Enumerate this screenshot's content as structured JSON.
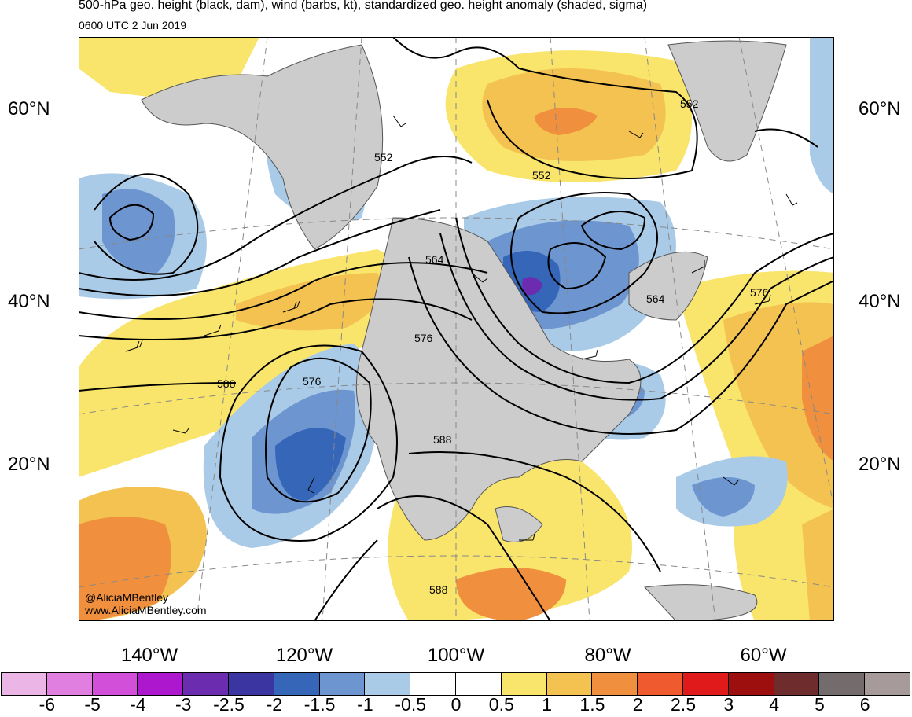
{
  "header": {
    "title": "500-hPa geo. height (black, dam), wind (barbs, kt), standardized geo. height anomaly (shaded, sigma)",
    "valid_time": "0600 UTC 2 Jun 2019"
  },
  "axes": {
    "lat_labels_left": [
      "60°N",
      "40°N",
      "20°N"
    ],
    "lat_labels_right": [
      "60°N",
      "40°N",
      "20°N"
    ],
    "lon_labels": [
      "140°W",
      "120°W",
      "100°W",
      "80°W",
      "60°W"
    ]
  },
  "contour_labels": [
    "552",
    "552",
    "552",
    "564",
    "564",
    "576",
    "576",
    "576",
    "588",
    "588",
    "588"
  ],
  "credit": {
    "handle": "@AliciaMBentley",
    "website": "www.AliciaMBentley.com"
  },
  "colorbar": {
    "ticks": [
      "-6",
      "-5",
      "-4",
      "-3",
      "-2.5",
      "-2",
      "-1.5",
      "-1",
      "-0.5",
      "0",
      "0.5",
      "1",
      "1.5",
      "2",
      "2.5",
      "3",
      "4",
      "5",
      "6"
    ],
    "colors": [
      "#ebb6e5",
      "#e17fe0",
      "#d24fd9",
      "#ad18cf",
      "#6b2cb0",
      "#3a35a0",
      "#3566b8",
      "#6d95d0",
      "#a9cbe8",
      "#ffffff",
      "#ffffff",
      "#f9e46c",
      "#f3c250",
      "#f0903e",
      "#ef5a2f",
      "#e01a1a",
      "#9d0f0f",
      "#6f2c2c",
      "#746c6c",
      "#a69a9a"
    ]
  },
  "legend_colors": {
    "land_mask": "#cccccc",
    "contour": "#000000",
    "coast": "#555555"
  }
}
